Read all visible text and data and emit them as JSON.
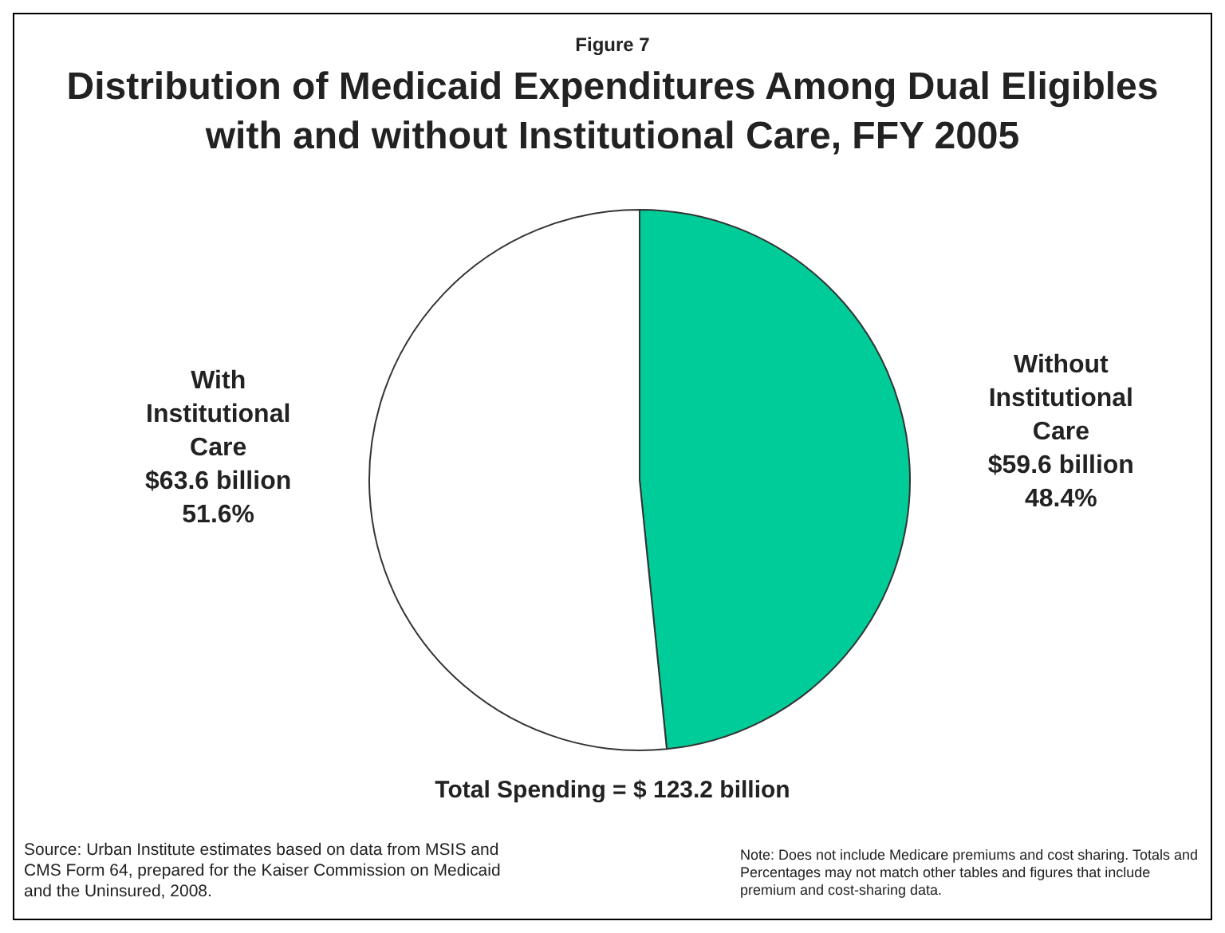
{
  "chart_data": {
    "type": "pie",
    "subtitle": "Figure 7",
    "title": "Distribution of Medicaid Expenditures Among Dual Eligibles with and without Institutional Care, FFY 2005",
    "categories": [
      "Without Institutional Care",
      "With Institutional Care"
    ],
    "values": [
      48.4,
      51.6
    ],
    "colors": [
      "#00cc99",
      "#ffffff"
    ],
    "value_labels": [
      "$59.6 billion\n48.4%",
      "$63.6 billion\n51.6%"
    ],
    "legend": false,
    "annotations": [
      "Total Spending = $ 123.2 billion",
      "Source: Urban Institute estimates based on data from MSIS and CMS Form 64, prepared for the Kaiser Commission on Medicaid and the Uninsured, 2008.",
      "Note: Does not include Medicare premiums and cost sharing. Totals and Percentages may not match other tables and figures that include premium and cost-sharing data."
    ]
  }
}
